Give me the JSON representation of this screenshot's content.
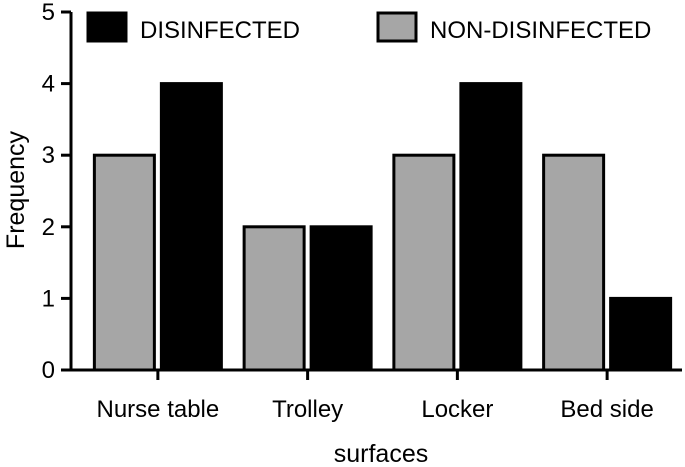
{
  "chart_data": {
    "type": "bar",
    "categories": [
      "Nurse table",
      "Trolley",
      "Locker",
      "Bed side"
    ],
    "series": [
      {
        "name": "NON-DISINFECTED",
        "values": [
          3,
          2,
          3,
          3
        ],
        "color": "#a6a6a6"
      },
      {
        "name": "DISINFECTED",
        "values": [
          4,
          2,
          4,
          1
        ],
        "color": "#000000"
      }
    ],
    "legend_order": [
      1,
      0
    ],
    "xlabel": "surfaces",
    "ylabel": "Frequency",
    "ylim": [
      0,
      5
    ],
    "yticks": [
      0,
      1,
      2,
      3,
      4,
      5
    ],
    "grid": false,
    "legend_position": "top"
  }
}
